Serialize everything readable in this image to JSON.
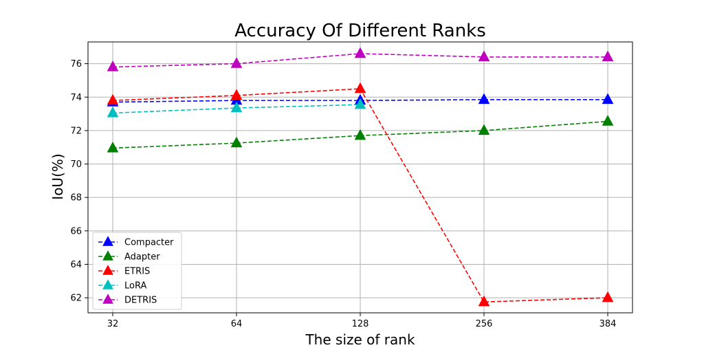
{
  "chart_data": {
    "type": "line",
    "title": "Accuracy Of Different Ranks",
    "xlabel": "The size of rank",
    "ylabel": "IoU(%)",
    "categories": [
      "32",
      "64",
      "128",
      "256",
      "384"
    ],
    "yticks": [
      62,
      64,
      66,
      68,
      70,
      72,
      74,
      76
    ],
    "ylim": [
      61.1,
      77.3
    ],
    "grid": true,
    "legend_position": "lower-left",
    "series": [
      {
        "name": "Compacter",
        "color": "#0000ff",
        "values": [
          73.7,
          73.8,
          73.8,
          73.85,
          73.85
        ]
      },
      {
        "name": "Adapter",
        "color": "#008000",
        "values": [
          70.95,
          71.25,
          71.7,
          72.0,
          72.55
        ]
      },
      {
        "name": "ETRIS",
        "color": "#ff0000",
        "values": [
          73.8,
          74.1,
          74.5,
          61.75,
          62.0
        ]
      },
      {
        "name": "LoRA",
        "color": "#00bfbf",
        "values": [
          73.05,
          73.35,
          73.55,
          null,
          null
        ]
      },
      {
        "name": "DETRIS",
        "color": "#bf00bf",
        "values": [
          75.8,
          76.0,
          76.6,
          76.4,
          76.4
        ]
      }
    ]
  }
}
